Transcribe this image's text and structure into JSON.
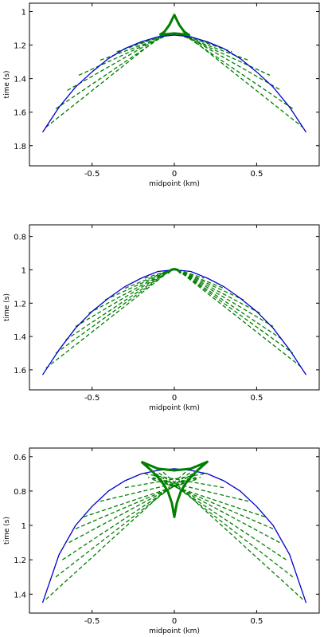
{
  "chart_data": [
    {
      "type": "line",
      "xlabel": "midpoint (km)",
      "ylabel": "time (s)",
      "xlim": [
        -0.88,
        0.88
      ],
      "ylim": [
        1.92,
        0.95
      ],
      "y_inverted": true,
      "xticks": [
        -0.5,
        0,
        0.5
      ],
      "xtick_labels": [
        "-0.5",
        "0",
        "0.5"
      ],
      "yticks": [
        1.0,
        1.2,
        1.4,
        1.6,
        1.8
      ],
      "ytick_labels": [
        "1",
        "1.2",
        "1.4",
        "1.6",
        "1.8"
      ],
      "colors": {
        "envelope": "#0000cc",
        "rays": "#007f00"
      },
      "envelope": {
        "x": [
          -0.8,
          -0.7,
          -0.6,
          -0.5,
          -0.4,
          -0.3,
          -0.2,
          -0.1,
          0.0,
          0.1,
          0.2,
          0.3,
          0.4,
          0.5,
          0.6,
          0.7,
          0.8
        ],
        "t": [
          1.72,
          1.57,
          1.45,
          1.36,
          1.28,
          1.22,
          1.18,
          1.15,
          1.14,
          1.15,
          1.18,
          1.22,
          1.28,
          1.36,
          1.45,
          1.57,
          1.72
        ]
      },
      "rays": [
        {
          "x": [
            -0.78,
            -0.1
          ],
          "t": [
            1.69,
            1.16
          ]
        },
        {
          "x": [
            -0.72,
            -0.09
          ],
          "t": [
            1.58,
            1.16
          ]
        },
        {
          "x": [
            -0.65,
            -0.08
          ],
          "t": [
            1.47,
            1.15
          ]
        },
        {
          "x": [
            -0.58,
            -0.07
          ],
          "t": [
            1.38,
            1.15
          ]
        },
        {
          "x": [
            -0.45,
            -0.06
          ],
          "t": [
            1.29,
            1.15
          ]
        },
        {
          "x": [
            -0.35,
            -0.05
          ],
          "t": [
            1.24,
            1.14
          ]
        },
        {
          "x": [
            -0.25,
            -0.04
          ],
          "t": [
            1.2,
            1.14
          ]
        },
        {
          "x": [
            0.1,
            0.78
          ],
          "t": [
            1.16,
            1.69
          ]
        },
        {
          "x": [
            0.09,
            0.72
          ],
          "t": [
            1.16,
            1.58
          ]
        },
        {
          "x": [
            0.08,
            0.65
          ],
          "t": [
            1.15,
            1.47
          ]
        },
        {
          "x": [
            0.07,
            0.58
          ],
          "t": [
            1.15,
            1.38
          ]
        },
        {
          "x": [
            0.06,
            0.45
          ],
          "t": [
            1.15,
            1.29
          ]
        },
        {
          "x": [
            0.05,
            0.35
          ],
          "t": [
            1.14,
            1.24
          ]
        },
        {
          "x": [
            0.04,
            0.25
          ],
          "t": [
            1.14,
            1.2
          ]
        }
      ],
      "caustic": {
        "x": [
          -0.09,
          -0.06,
          -0.03,
          -0.01,
          0.0,
          0.01,
          0.03,
          0.06,
          0.09,
          0.05,
          0.0,
          -0.05,
          -0.09
        ],
        "t": [
          1.14,
          1.12,
          1.08,
          1.04,
          1.02,
          1.04,
          1.08,
          1.12,
          1.14,
          1.135,
          1.13,
          1.135,
          1.14
        ]
      }
    },
    {
      "type": "line",
      "xlabel": "midpoint (km)",
      "ylabel": "time (s)",
      "xlim": [
        -0.88,
        0.88
      ],
      "ylim": [
        1.72,
        0.73
      ],
      "y_inverted": true,
      "xticks": [
        -0.5,
        0,
        0.5
      ],
      "xtick_labels": [
        "-0.5",
        "0",
        "0.5"
      ],
      "yticks": [
        0.8,
        1.0,
        1.2,
        1.4,
        1.6
      ],
      "ytick_labels": [
        "0.8",
        "1",
        "1.2",
        "1.4",
        "1.6"
      ],
      "colors": {
        "envelope": "#0000cc",
        "rays": "#007f00"
      },
      "envelope": {
        "x": [
          -0.8,
          -0.7,
          -0.6,
          -0.5,
          -0.4,
          -0.3,
          -0.2,
          -0.1,
          0.0,
          0.1,
          0.2,
          0.3,
          0.4,
          0.5,
          0.6,
          0.7,
          0.8
        ],
        "t": [
          1.63,
          1.48,
          1.35,
          1.25,
          1.17,
          1.1,
          1.05,
          1.01,
          1.0,
          1.01,
          1.05,
          1.1,
          1.17,
          1.25,
          1.35,
          1.48,
          1.63
        ]
      },
      "rays": [
        {
          "x": [
            -0.78,
            -0.02
          ],
          "t": [
            1.59,
            1.0
          ]
        },
        {
          "x": [
            -0.72,
            -0.02
          ],
          "t": [
            1.5,
            1.0
          ]
        },
        {
          "x": [
            -0.66,
            -0.02
          ],
          "t": [
            1.42,
            1.0
          ]
        },
        {
          "x": [
            -0.6,
            -0.02
          ],
          "t": [
            1.34,
            1.0
          ]
        },
        {
          "x": [
            -0.52,
            -0.02
          ],
          "t": [
            1.26,
            1.0
          ]
        },
        {
          "x": [
            -0.42,
            -0.02
          ],
          "t": [
            1.18,
            1.0
          ]
        },
        {
          "x": [
            -0.3,
            -0.02
          ],
          "t": [
            1.11,
            1.0
          ]
        },
        {
          "x": [
            -0.18,
            -0.02
          ],
          "t": [
            1.05,
            1.0
          ]
        },
        {
          "x": [
            0.02,
            0.78
          ],
          "t": [
            1.0,
            1.59
          ]
        },
        {
          "x": [
            0.02,
            0.72
          ],
          "t": [
            1.0,
            1.5
          ]
        },
        {
          "x": [
            0.02,
            0.66
          ],
          "t": [
            1.0,
            1.42
          ]
        },
        {
          "x": [
            0.02,
            0.6
          ],
          "t": [
            1.0,
            1.34
          ]
        },
        {
          "x": [
            0.02,
            0.52
          ],
          "t": [
            1.0,
            1.26
          ]
        },
        {
          "x": [
            0.02,
            0.42
          ],
          "t": [
            1.0,
            1.18
          ]
        },
        {
          "x": [
            0.02,
            0.3
          ],
          "t": [
            1.0,
            1.11
          ]
        },
        {
          "x": [
            0.02,
            0.18
          ],
          "t": [
            1.0,
            1.05
          ]
        }
      ],
      "caustic": {
        "x": [
          -0.04,
          -0.02,
          0.0,
          0.02,
          0.04
        ],
        "t": [
          1.02,
          1.0,
          0.995,
          1.0,
          1.02
        ]
      }
    },
    {
      "type": "line",
      "xlabel": "midpoint (km)",
      "ylabel": "time (s)",
      "xlim": [
        -0.88,
        0.88
      ],
      "ylim": [
        1.51,
        0.55
      ],
      "y_inverted": true,
      "xticks": [
        -0.5,
        0,
        0.5
      ],
      "xtick_labels": [
        "-0.5",
        "0",
        "0.5"
      ],
      "yticks": [
        0.6,
        0.8,
        1.0,
        1.2,
        1.4
      ],
      "ytick_labels": [
        "0.6",
        "0.8",
        "1",
        "1.2",
        "1.4"
      ],
      "colors": {
        "envelope": "#0000cc",
        "rays": "#007f00"
      },
      "envelope": {
        "x": [
          -0.8,
          -0.7,
          -0.6,
          -0.5,
          -0.4,
          -0.3,
          -0.2,
          -0.1,
          0.0,
          0.1,
          0.2,
          0.3,
          0.4,
          0.5,
          0.6,
          0.7,
          0.8
        ],
        "t": [
          1.45,
          1.17,
          1.0,
          0.89,
          0.8,
          0.74,
          0.7,
          0.68,
          0.67,
          0.68,
          0.7,
          0.74,
          0.8,
          0.89,
          1.0,
          1.17,
          1.45
        ]
      },
      "rays": [
        {
          "x": [
            -0.78,
            0.08
          ],
          "t": [
            1.43,
            0.68
          ]
        },
        {
          "x": [
            -0.72,
            0.1
          ],
          "t": [
            1.3,
            0.69
          ]
        },
        {
          "x": [
            -0.68,
            0.11
          ],
          "t": [
            1.2,
            0.7
          ]
        },
        {
          "x": [
            -0.64,
            0.12
          ],
          "t": [
            1.1,
            0.71
          ]
        },
        {
          "x": [
            -0.6,
            0.13
          ],
          "t": [
            1.02,
            0.72
          ]
        },
        {
          "x": [
            -0.55,
            0.14
          ],
          "t": [
            0.95,
            0.73
          ]
        },
        {
          "x": [
            -0.45,
            0.16
          ],
          "t": [
            0.86,
            0.72
          ]
        },
        {
          "x": [
            -0.3,
            0.18
          ],
          "t": [
            0.78,
            0.7
          ]
        },
        {
          "x": [
            0.78,
            -0.08
          ],
          "t": [
            1.43,
            0.68
          ]
        },
        {
          "x": [
            0.72,
            -0.1
          ],
          "t": [
            1.3,
            0.69
          ]
        },
        {
          "x": [
            0.68,
            -0.11
          ],
          "t": [
            1.2,
            0.7
          ]
        },
        {
          "x": [
            0.64,
            -0.12
          ],
          "t": [
            1.1,
            0.71
          ]
        },
        {
          "x": [
            0.6,
            -0.13
          ],
          "t": [
            1.02,
            0.72
          ]
        },
        {
          "x": [
            0.55,
            -0.14
          ],
          "t": [
            0.95,
            0.73
          ]
        },
        {
          "x": [
            0.45,
            -0.16
          ],
          "t": [
            0.86,
            0.72
          ]
        },
        {
          "x": [
            0.3,
            -0.18
          ],
          "t": [
            0.78,
            0.7
          ]
        }
      ],
      "caustic": {
        "x": [
          -0.2,
          -0.14,
          -0.08,
          -0.04,
          -0.015,
          0.0,
          0.015,
          0.04,
          0.08,
          0.14,
          0.2,
          0.1,
          0.0,
          -0.1,
          -0.2
        ],
        "t": [
          0.63,
          0.68,
          0.74,
          0.8,
          0.87,
          0.95,
          0.87,
          0.8,
          0.74,
          0.68,
          0.63,
          0.67,
          0.68,
          0.67,
          0.63
        ]
      }
    }
  ]
}
